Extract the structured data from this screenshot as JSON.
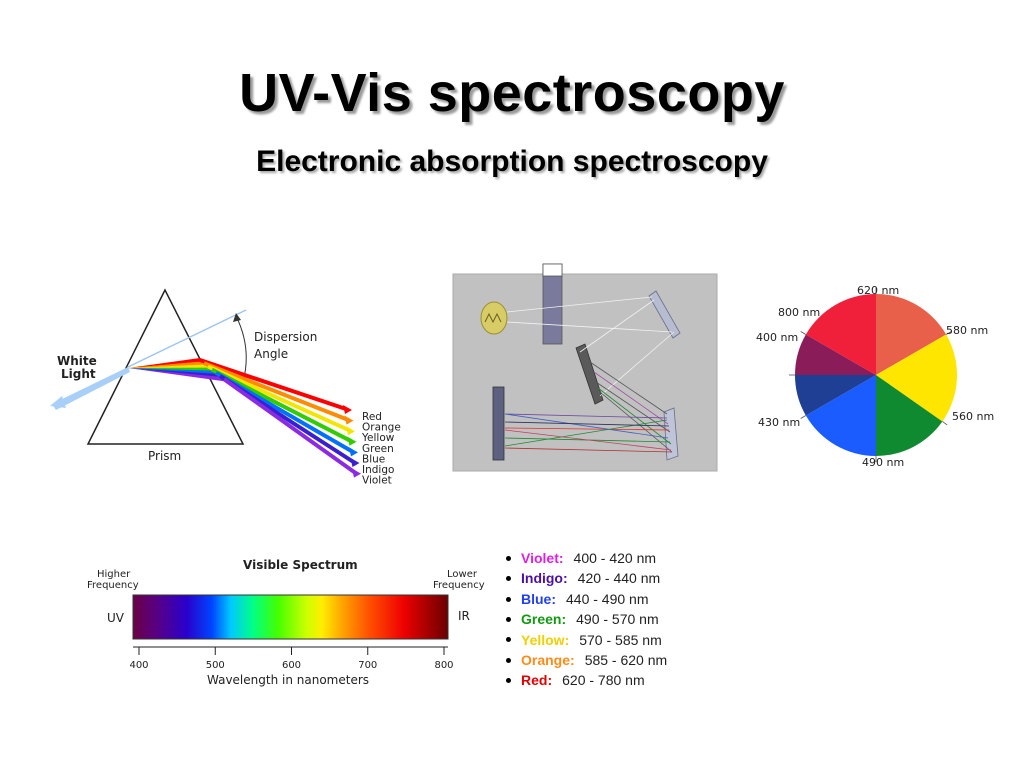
{
  "slide": {
    "title": "UV-Vis spectroscopy",
    "subtitle": "Electronic absorption spectroscopy"
  },
  "prism": {
    "white_light": "White",
    "white_light_2": "Light",
    "dispersion": "Dispersion",
    "angle": "Angle",
    "prism_label": "Prism",
    "colors": [
      {
        "name": "Red",
        "color": "#ff0000"
      },
      {
        "name": "Orange",
        "color": "#ff8c00"
      },
      {
        "name": "Yellow",
        "color": "#f2e600"
      },
      {
        "name": "Green",
        "color": "#33cc00"
      },
      {
        "name": "Blue",
        "color": "#0070ff"
      },
      {
        "name": "Indigo",
        "color": "#3a1fd0"
      },
      {
        "name": "Violet",
        "color": "#8a2be2"
      }
    ]
  },
  "color_wheel": {
    "labels": {
      "l620": "620 nm",
      "l580": "580 nm",
      "l560": "560 nm",
      "l490": "490 nm",
      "l430": "430 nm",
      "l400": "400 nm",
      "l800": "800 nm"
    },
    "colors": {
      "orange": "#e8604a",
      "yellow": "#ffe600",
      "green": "#108a30",
      "blue": "#1a5cff",
      "indigo": "#1e3f94",
      "violet": "#8a1c5a",
      "red": "#f0203a"
    }
  },
  "visible_spectrum": {
    "title": "Visible Spectrum",
    "higher": "Higher",
    "higher_2": "Frequency",
    "lower": "Lower",
    "lower_2": "Frequency",
    "uv": "UV",
    "ir": "IR",
    "ticks": [
      "400",
      "500",
      "600",
      "700",
      "800"
    ],
    "xlabel": "Wavelength in nanometers"
  },
  "ranges": [
    {
      "name": "Violet:",
      "range": "400 - 420 nm",
      "color": "#e020e0"
    },
    {
      "name": "Indigo:",
      "range": "420 - 440 nm",
      "color": "#4b0fa8"
    },
    {
      "name": "Blue:",
      "range": "440 - 490 nm",
      "color": "#1f3ff0"
    },
    {
      "name": "Green:",
      "range": "490 - 570 nm",
      "color": "#119a11"
    },
    {
      "name": "Yellow:",
      "range": "570 - 585 nm",
      "color": "#f0d000"
    },
    {
      "name": "Orange:",
      "range": "585 - 620 nm",
      "color": "#ff8c1a"
    },
    {
      "name": "Red:",
      "range": "620 - 780 nm",
      "color": "#e00000"
    }
  ]
}
